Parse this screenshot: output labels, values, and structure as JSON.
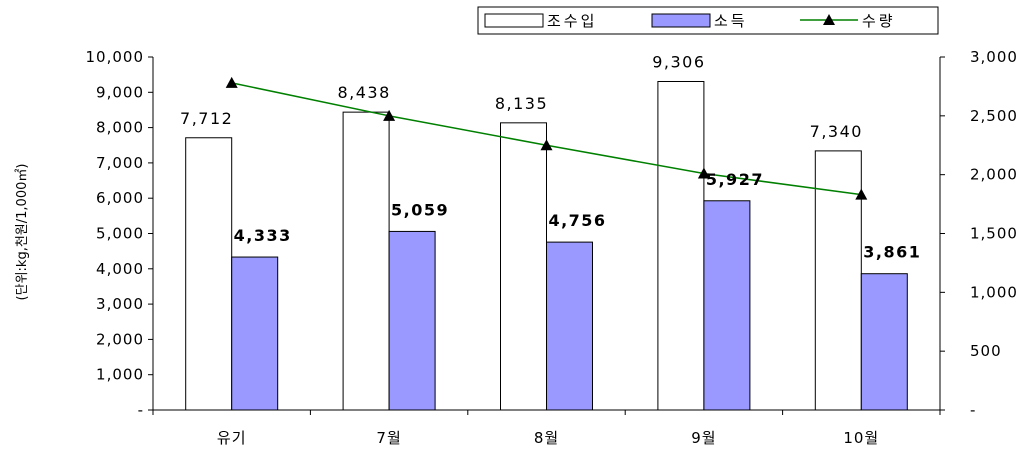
{
  "chart_data": {
    "type": "bar",
    "categories": [
      "유기",
      "7월",
      "8월",
      "9월",
      "10월"
    ],
    "ylabel": "(단위:kg,천원/1,000㎡)",
    "ylim": [
      0,
      10000
    ],
    "y2lim": [
      0,
      3000
    ],
    "yticks": [
      "-",
      "1,000",
      "2,000",
      "3,000",
      "4,000",
      "5,000",
      "6,000",
      "7,000",
      "8,000",
      "9,000",
      "10,000"
    ],
    "y2ticks": [
      "-",
      "500",
      "1,000",
      "1,500",
      "2,000",
      "2,500",
      "3,000"
    ],
    "legend_position": "top-right",
    "series": [
      {
        "name": "조수입",
        "kind": "bar",
        "axis": "left",
        "color": "#ffffff",
        "stroke": "#000000",
        "values": [
          7712,
          8438,
          8135,
          9306,
          7340
        ],
        "labels": [
          "7,712",
          "8,438",
          "8,135",
          "9,306",
          "7,340"
        ]
      },
      {
        "name": "소득",
        "kind": "bar",
        "axis": "left",
        "color": "#9999ff",
        "stroke": "#000000",
        "values": [
          4333,
          5059,
          4756,
          5927,
          3861
        ],
        "labels": [
          "4,333",
          "5,059",
          "4,756",
          "5,927",
          "3,861"
        ]
      },
      {
        "name": "수량",
        "kind": "line",
        "axis": "right",
        "color": "#008000",
        "marker": "triangle",
        "values": [
          2780,
          2500,
          2250,
          2010,
          1830
        ]
      }
    ]
  }
}
